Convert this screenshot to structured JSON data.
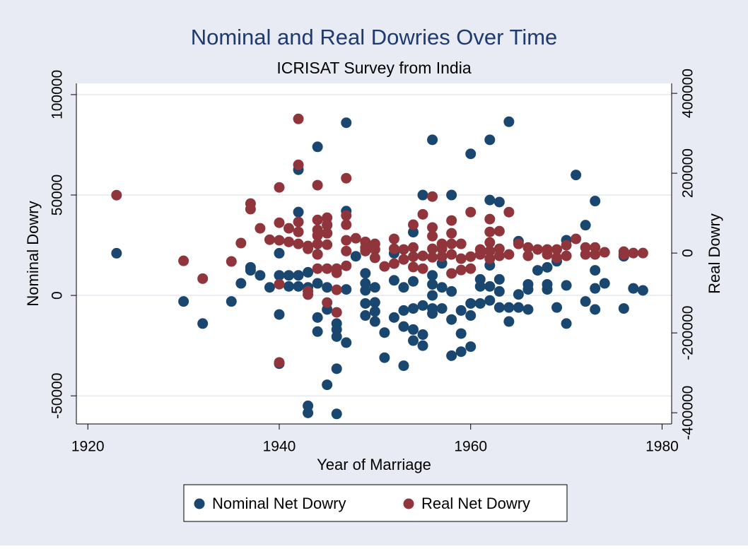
{
  "chart_data": {
    "type": "scatter",
    "title": "Nominal and Real Dowries Over Time",
    "subtitle": "ICRISAT Survey from India",
    "x_label": "Year of Marriage",
    "y_label": "Nominal Dowry",
    "y2_label": "Real Dowry",
    "xlim": [
      1918.8,
      1981
    ],
    "xticks": [
      1920,
      1940,
      1960,
      1980
    ],
    "ylim": [
      -64000,
      105600
    ],
    "yticks": [
      -50000,
      0,
      50000,
      100000
    ],
    "y2lim": [
      -428000,
      425000
    ],
    "y2ticks": [
      -400000,
      -200000,
      0,
      200000,
      400000
    ],
    "grid": true,
    "legend": "bottom",
    "series": [
      {
        "name": "Nominal Net Dowry",
        "color": "#1a476f",
        "x": [
          1923,
          1930,
          1932,
          1935,
          1936,
          1937,
          1937,
          1938,
          1939,
          1940,
          1940,
          1940,
          1940,
          1941,
          1941,
          1942,
          1942,
          1942,
          1942,
          1943,
          1943,
          1943,
          1943,
          1944,
          1944,
          1944,
          1944,
          1944,
          1945,
          1945,
          1945,
          1945,
          1945,
          1946,
          1946,
          1946,
          1946,
          1946,
          1947,
          1947,
          1947,
          1947,
          1948,
          1949,
          1949,
          1949,
          1949,
          1949,
          1950,
          1950,
          1950,
          1950,
          1951,
          1951,
          1952,
          1952,
          1952,
          1953,
          1953,
          1953,
          1953,
          1954,
          1954,
          1954,
          1954,
          1954,
          1955,
          1955,
          1955,
          1955,
          1956,
          1956,
          1956,
          1956,
          1956,
          1956,
          1957,
          1957,
          1957,
          1958,
          1958,
          1958,
          1958,
          1959,
          1959,
          1959,
          1960,
          1960,
          1960,
          1960,
          1961,
          1961,
          1961,
          1962,
          1962,
          1962,
          1962,
          1962,
          1963,
          1963,
          1963,
          1963,
          1964,
          1964,
          1964,
          1965,
          1965,
          1965,
          1966,
          1966,
          1966,
          1967,
          1968,
          1968,
          1968,
          1969,
          1969,
          1970,
          1970,
          1970,
          1971,
          1972,
          1972,
          1973,
          1973,
          1973,
          1973,
          1974,
          1976,
          1976,
          1977,
          1978
        ],
        "values": [
          21000,
          -3000,
          -14000,
          -3000,
          6000,
          14000,
          12500,
          10000,
          4000,
          21000,
          10000,
          -9500,
          -34000,
          10000,
          4500,
          10000,
          41500,
          62600,
          4500,
          11500,
          4000,
          -55000,
          -58500,
          74000,
          -11000,
          -18000,
          6000,
          20500,
          -44500,
          -7000,
          4000,
          31000,
          35000,
          -36500,
          -59000,
          -20500,
          -17000,
          -14000,
          86000,
          42000,
          3000,
          -23500,
          19500,
          11000,
          6000,
          2500,
          -4000,
          -10000,
          -3500,
          4000,
          -13000,
          -8000,
          -18500,
          -31000,
          21000,
          7500,
          -11000,
          -35000,
          4000,
          -7500,
          -15500,
          31500,
          7000,
          -6500,
          -17000,
          -22500,
          50000,
          -25000,
          -5000,
          -19500,
          77500,
          10000,
          5500,
          0,
          -6500,
          -9000,
          16000,
          4000,
          -6500,
          50000,
          2000,
          -12000,
          -30000,
          -7500,
          -19000,
          -28000,
          70500,
          -4000,
          -10000,
          -25500,
          4500,
          8000,
          -4000,
          77500,
          47500,
          15000,
          4500,
          -2500,
          46500,
          8000,
          2000,
          -6000,
          86500,
          -6000,
          -13000,
          27000,
          500,
          -6000,
          5500,
          3000,
          -7000,
          12500,
          14000,
          5500,
          3000,
          17000,
          -6000,
          27500,
          5000,
          -14000,
          60000,
          35000,
          -3000,
          47000,
          12500,
          3500,
          -7000,
          6000,
          19500,
          -6500,
          3500,
          2500
        ]
      },
      {
        "name": "Real Net Dowry",
        "color": "#90353b",
        "axis": "y2",
        "x": [
          1923,
          1930,
          1932,
          1935,
          1936,
          1937,
          1937,
          1938,
          1939,
          1940,
          1940,
          1940,
          1940,
          1940,
          1941,
          1941,
          1942,
          1942,
          1942,
          1942,
          1942,
          1943,
          1943,
          1943,
          1943,
          1944,
          1944,
          1944,
          1944,
          1944,
          1944,
          1944,
          1945,
          1945,
          1945,
          1945,
          1945,
          1945,
          1946,
          1946,
          1946,
          1946,
          1947,
          1947,
          1947,
          1947,
          1947,
          1947,
          1948,
          1949,
          1949,
          1949,
          1950,
          1950,
          1950,
          1951,
          1952,
          1952,
          1952,
          1953,
          1953,
          1954,
          1954,
          1954,
          1954,
          1955,
          1955,
          1955,
          1956,
          1956,
          1956,
          1956,
          1956,
          1957,
          1957,
          1957,
          1958,
          1958,
          1958,
          1958,
          1958,
          1959,
          1959,
          1959,
          1960,
          1960,
          1960,
          1961,
          1961,
          1962,
          1962,
          1962,
          1962,
          1962,
          1963,
          1963,
          1963,
          1964,
          1964,
          1965,
          1966,
          1966,
          1967,
          1968,
          1968,
          1969,
          1969,
          1970,
          1970,
          1971,
          1972,
          1972,
          1973,
          1973,
          1974,
          1976,
          1976,
          1977,
          1978
        ],
        "values": [
          145000,
          -19500,
          -64000,
          -21000,
          25000,
          124000,
          110000,
          62000,
          33500,
          164500,
          76000,
          32000,
          -78000,
          -274000,
          62000,
          28000,
          336000,
          221000,
          78000,
          53000,
          23000,
          17700,
          10600,
          -95600,
          -104000,
          170000,
          83000,
          58000,
          44000,
          23000,
          -3500,
          -39000,
          88500,
          71000,
          49500,
          21000,
          -39000,
          -124000,
          -39000,
          -49500,
          -92000,
          -148500,
          187500,
          94000,
          71000,
          32000,
          5000,
          -32000,
          37000,
          28000,
          14000,
          5000,
          23000,
          9000,
          -12000,
          -33500,
          35500,
          10600,
          -26500,
          9000,
          -16000,
          71000,
          14000,
          -9000,
          -35000,
          97000,
          -7000,
          -39000,
          141500,
          64000,
          42500,
          10600,
          -10600,
          23000,
          10600,
          -9000,
          81500,
          49500,
          23000,
          -3500,
          -51000,
          23000,
          -14000,
          -42500,
          102500,
          -9000,
          -39000,
          9000,
          -3500,
          85000,
          53000,
          26500,
          5000,
          -14000,
          55000,
          10600,
          -7000,
          102500,
          -3500,
          23000,
          14000,
          -7000,
          9000,
          9000,
          -3500,
          9000,
          -12000,
          19500,
          -7000,
          35500,
          14000,
          -3500,
          14000,
          -3500,
          2000,
          3500,
          -3500,
          0,
          0
        ]
      }
    ]
  }
}
